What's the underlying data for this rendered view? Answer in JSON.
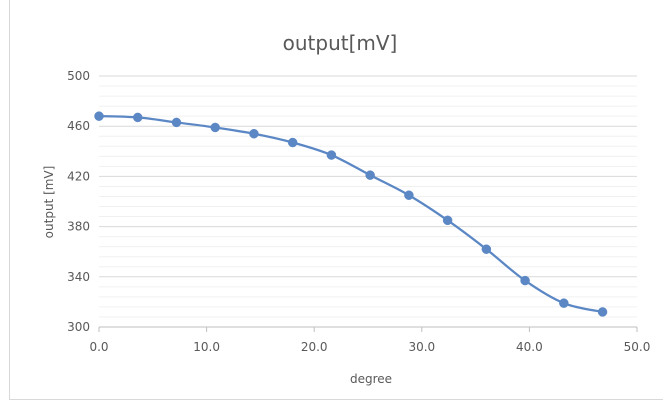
{
  "chart_data": {
    "type": "scatter",
    "title": "output[mV]",
    "xlabel": "degree",
    "ylabel": "output [mV]",
    "xlim": [
      0.0,
      50.0
    ],
    "ylim": [
      300,
      500
    ],
    "xticks": [
      "0.0",
      "10.0",
      "20.0",
      "30.0",
      "40.0",
      "50.0"
    ],
    "yticks": [
      "300",
      "340",
      "380",
      "420",
      "460",
      "500"
    ],
    "grid": true,
    "legend": "none",
    "smooth_line": true,
    "series_color": "#5b87c5",
    "series": [
      {
        "x": [
          0.0,
          3.6,
          7.2,
          10.8,
          14.4,
          18.0,
          21.6,
          25.2,
          28.8,
          32.4,
          36.0,
          39.6,
          43.2,
          46.8
        ],
        "y": [
          468,
          467,
          463,
          459,
          454,
          447,
          437,
          421,
          405,
          385,
          362,
          337,
          319,
          312
        ]
      }
    ]
  }
}
